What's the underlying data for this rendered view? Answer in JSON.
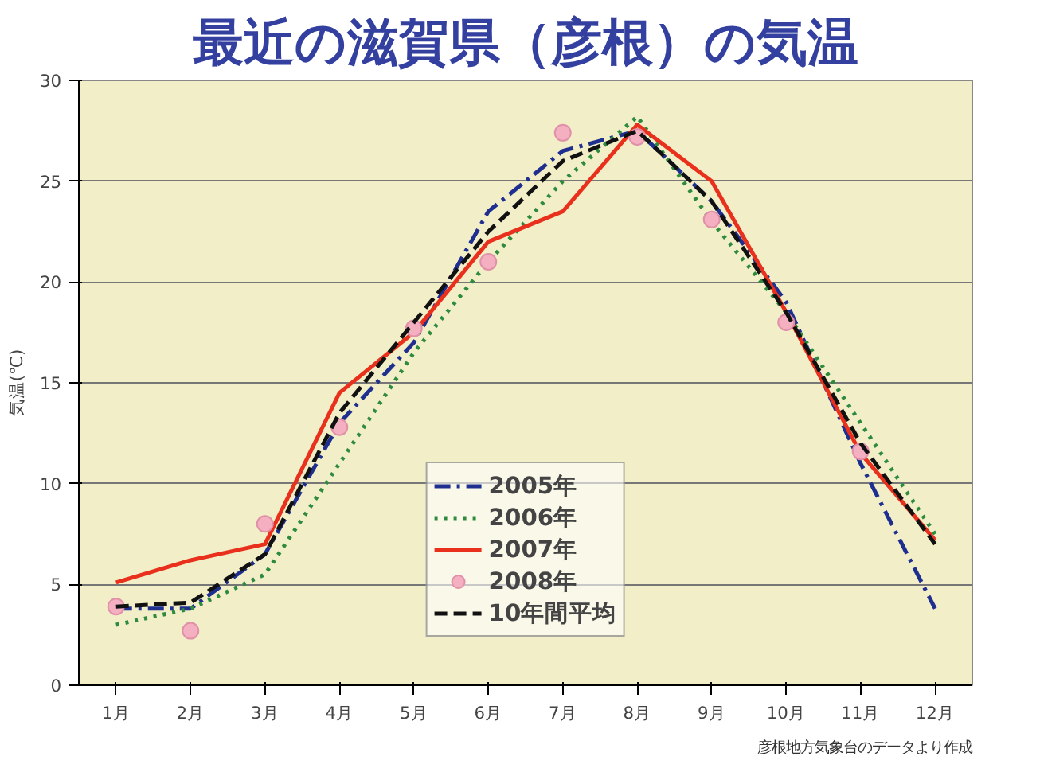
{
  "chart_data": {
    "type": "line",
    "title": "最近の滋賀県（彦根）の気温",
    "ylabel": "気温(℃)",
    "categories": [
      "1月",
      "2月",
      "3月",
      "4月",
      "5月",
      "6月",
      "7月",
      "8月",
      "9月",
      "10月",
      "11月",
      "12月"
    ],
    "series": [
      {
        "name": "2005年",
        "color": "#1f2f8f",
        "line_style": "dashdot",
        "values": [
          3.8,
          3.8,
          6.5,
          13,
          17,
          23.5,
          26.5,
          27.5,
          24,
          19,
          11,
          3.8
        ]
      },
      {
        "name": "2006年",
        "color": "#2e8b3e",
        "line_style": "dotted",
        "values": [
          3.0,
          3.8,
          5.5,
          11,
          16.5,
          21,
          25,
          28.2,
          23,
          18.5,
          13,
          7.5
        ]
      },
      {
        "name": "2007年",
        "color": "#e8301c",
        "line_style": "solid",
        "values": [
          5.1,
          6.2,
          7.0,
          14.5,
          17.5,
          22,
          23.5,
          27.8,
          25,
          18.5,
          11.5,
          7.2
        ]
      },
      {
        "name": "2008年",
        "color": "#f4b0c0",
        "type": "scatter",
        "marker": "circle",
        "values": [
          3.9,
          2.7,
          8.0,
          12.8,
          17.7,
          21.0,
          27.4,
          27.2,
          23.1,
          18.0,
          11.6,
          null
        ]
      },
      {
        "name": "10年間平均",
        "color": "#111111",
        "line_style": "dashed",
        "values": [
          3.9,
          4.1,
          6.5,
          13.5,
          18,
          22.5,
          26,
          27.5,
          24,
          18.5,
          12,
          7
        ]
      }
    ],
    "ylim": [
      0,
      30
    ],
    "yticks": [
      0,
      5,
      10,
      15,
      20,
      25,
      30
    ],
    "grid": "y",
    "legend": "bottom",
    "annotations": [
      "彦根地方気象台のデータより作成"
    ]
  }
}
